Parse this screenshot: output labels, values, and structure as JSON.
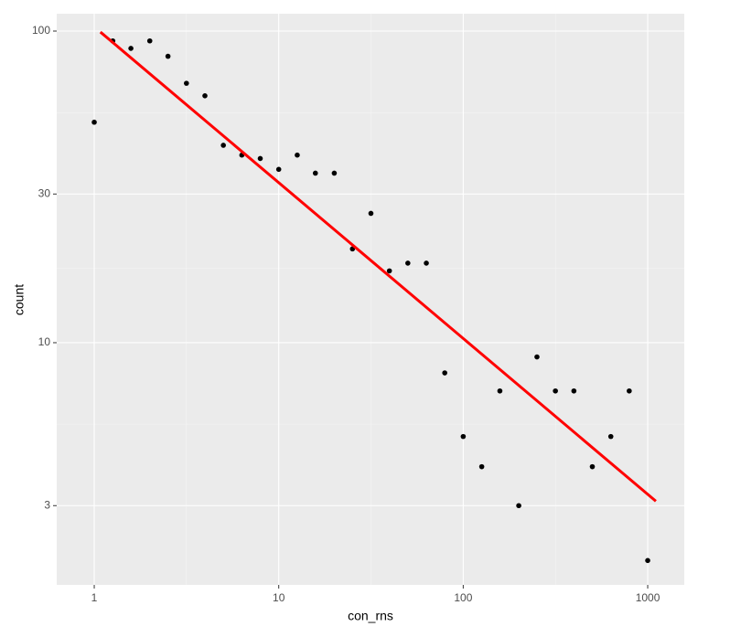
{
  "chart_data": {
    "type": "scatter",
    "x_label": "con_rns",
    "y_label": "count",
    "x": [
      1,
      1.26,
      1.58,
      2,
      2.51,
      3.16,
      3.98,
      5.01,
      6.31,
      7.94,
      10,
      12.6,
      15.8,
      20,
      25.1,
      31.6,
      39.8,
      50.1,
      63.1,
      79.4,
      100,
      126,
      158,
      200,
      251,
      316,
      398,
      501,
      631,
      794,
      1000
    ],
    "values": [
      51,
      93,
      88,
      93,
      83,
      68,
      62,
      43,
      40,
      39,
      36,
      40,
      35,
      35,
      20,
      26,
      17,
      18,
      18,
      8,
      5,
      4,
      7,
      3,
      9,
      7,
      7,
      4,
      5,
      7,
      2
    ],
    "color": "#000000",
    "fit": {
      "x": [
        1.08,
        1107
      ],
      "values": [
        99.3,
        3.1
      ],
      "color": "#ff0000"
    },
    "xlog": true,
    "ylog": true,
    "xlim": [
      0.626,
      1578
    ],
    "ylim": [
      1.67,
      113.7
    ],
    "xticks": [
      1,
      10,
      100,
      1000
    ],
    "yticks": [
      3,
      10,
      30,
      100
    ],
    "grid": true
  }
}
